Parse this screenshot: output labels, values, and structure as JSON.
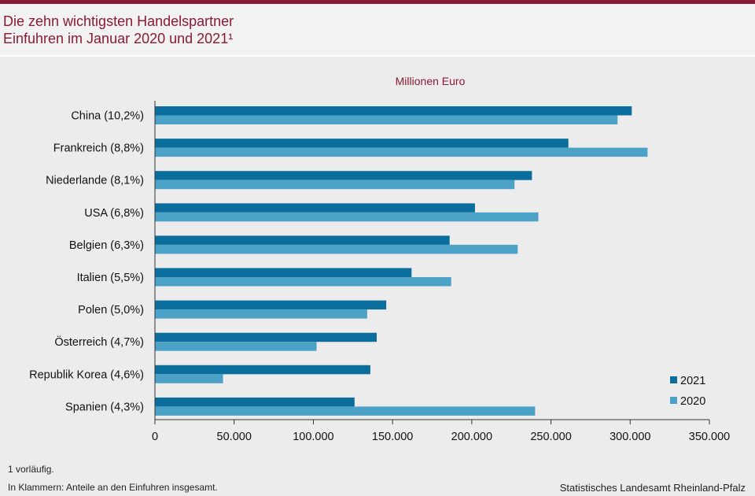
{
  "header": {
    "title_line1": "Die zehn wichtigsten Handelspartner",
    "title_line2": "Einfuhren im Januar 2020 und 2021¹"
  },
  "chart_data": {
    "type": "bar",
    "orientation": "horizontal",
    "unit_label": "Millionen  Euro",
    "categories": [
      "China (10,2%)",
      "Frankreich (8,8%)",
      "Niederlande (8,1%)",
      "USA (6,8%)",
      "Belgien (6,3%)",
      "Italien (5,5%)",
      "Polen (5,0%)",
      "Österreich (4,7%)",
      "Republik Korea (4,6%)",
      "Spanien (4,3%)"
    ],
    "series": [
      {
        "name": "2021",
        "color": "#0a6d9c",
        "values": [
          301000,
          261000,
          238000,
          202000,
          186000,
          162000,
          146000,
          140000,
          136000,
          126000
        ]
      },
      {
        "name": "2020",
        "color": "#4ba1c6",
        "values": [
          292000,
          311000,
          227000,
          242000,
          229000,
          187000,
          134000,
          102000,
          43000,
          240000
        ]
      }
    ],
    "xlim": [
      0,
      350000
    ],
    "xticks": [
      0,
      50000,
      100000,
      150000,
      200000,
      250000,
      300000,
      350000
    ],
    "xtick_labels": [
      "0",
      "50.000",
      "100.000",
      "150.000",
      "200.000",
      "250.000",
      "300.000",
      "350.000"
    ],
    "legend_position": "bottom-right",
    "grid": false
  },
  "footer": {
    "note1": "1 vorläufig.",
    "note2": "In Klammern:  Anteile  an den Einfuhren  insgesamt.",
    "source": "Statistisches  Landesamt Rheinland-Pfalz"
  }
}
